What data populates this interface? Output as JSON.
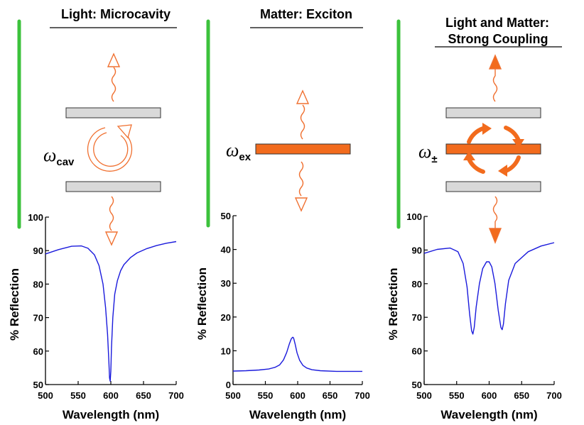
{
  "panels": [
    {
      "title_lines": [
        "Light: Microcavity"
      ],
      "omega_symbol": "ω",
      "omega_sub": "cav"
    },
    {
      "title_lines": [
        "Matter: Exciton"
      ],
      "omega_symbol": "ω",
      "omega_sub": "ex"
    },
    {
      "title_lines": [
        "Light and Matter:",
        "Strong Coupling"
      ],
      "omega_symbol": "ω",
      "omega_sub": "±"
    }
  ],
  "colors": {
    "divider_green": "#3cc23c",
    "arrow_orange": "#f07030",
    "exciton_fill": "#f26b1d",
    "mirror_fill": "#d9d9d9",
    "curve_blue": "#1a1adc"
  },
  "icons": [
    "wavy-arrow-up-icon",
    "wavy-arrow-down-icon",
    "circulating-arrow-icon",
    "rabi-oscillation-arrows-icon"
  ],
  "chart_data": [
    {
      "type": "line",
      "xlabel": "Wavelength (nm)",
      "ylabel": "% Reflection",
      "xlim": [
        500,
        700
      ],
      "ylim": [
        50,
        100
      ],
      "xticks": [
        500,
        550,
        600,
        650,
        700
      ],
      "yticks": [
        50,
        60,
        70,
        80,
        90,
        100
      ],
      "series": [
        {
          "x": [
            500,
            520,
            540,
            555,
            565,
            575,
            582,
            588,
            592,
            595,
            597,
            598,
            599,
            600,
            601,
            603,
            606,
            610,
            615,
            620,
            630,
            640,
            655,
            670,
            685,
            700
          ],
          "y": [
            89,
            90.3,
            91.3,
            91.4,
            90.7,
            88.7,
            85.5,
            80,
            73,
            65,
            57,
            52,
            51,
            54,
            61,
            70,
            77,
            81,
            84,
            85.8,
            87.9,
            89.3,
            90.6,
            91.5,
            92.2,
            92.7
          ]
        }
      ]
    },
    {
      "type": "line",
      "xlabel": "Wavelength (nm)",
      "ylabel": "% Reflection",
      "xlim": [
        500,
        700
      ],
      "ylim": [
        0,
        50
      ],
      "xticks": [
        500,
        550,
        600,
        650,
        700
      ],
      "yticks": [
        0,
        10,
        20,
        30,
        40,
        50
      ],
      "series": [
        {
          "x": [
            500,
            520,
            540,
            555,
            565,
            572,
            578,
            583,
            587,
            590,
            592,
            593,
            594,
            596,
            599,
            603,
            608,
            614,
            622,
            635,
            660,
            700
          ],
          "y": [
            4,
            4.1,
            4.3,
            4.6,
            5.1,
            5.8,
            7.3,
            9.5,
            12,
            13.5,
            14,
            14,
            13.6,
            12,
            9.4,
            7.2,
            5.7,
            4.9,
            4.4,
            4.1,
            3.9,
            3.9
          ]
        }
      ]
    },
    {
      "type": "line",
      "xlabel": "Wavelength (nm)",
      "ylabel": "% Reflection",
      "xlim": [
        500,
        700
      ],
      "ylim": [
        50,
        100
      ],
      "xticks": [
        500,
        550,
        600,
        650,
        700
      ],
      "yticks": [
        50,
        60,
        70,
        80,
        90,
        100
      ],
      "series": [
        {
          "x": [
            500,
            520,
            540,
            552,
            560,
            566,
            570,
            573,
            575,
            577,
            580,
            585,
            590,
            596,
            600,
            604,
            609,
            614,
            618,
            620,
            622,
            625,
            630,
            640,
            660,
            680,
            700
          ],
          "y": [
            89,
            90.2,
            90.6,
            89.5,
            86,
            79,
            71,
            66,
            65,
            67,
            73,
            80,
            84.5,
            86.5,
            86.5,
            85,
            80,
            72,
            67,
            66.3,
            68,
            74,
            81,
            86,
            89.5,
            91.2,
            92.2
          ]
        }
      ]
    }
  ]
}
